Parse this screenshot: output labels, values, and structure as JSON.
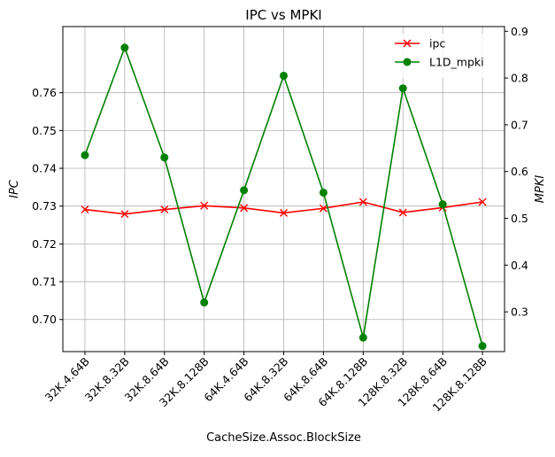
{
  "chart_data": {
    "type": "line",
    "title": "IPC vs MPKI",
    "xlabel": "CacheSize.Assoc.BlockSize",
    "ylabel_left": "IPC",
    "ylabel_right": "MPKI",
    "categories": [
      "32K.4.64B",
      "32K.8.32B",
      "32K.8.64B",
      "32K.8.128B",
      "64K.4.64B",
      "64K.8.32B",
      "64K.8.64B",
      "64K.8.128B",
      "128K.8.32B",
      "128K.8.64B",
      "128K.8.128B"
    ],
    "left_axis": {
      "ylim": [
        0.6915,
        0.7775
      ],
      "ticks": [
        0.7,
        0.71,
        0.72,
        0.73,
        0.74,
        0.75,
        0.76
      ],
      "tick_labels": [
        "0.70",
        "0.71",
        "0.72",
        "0.73",
        "0.74",
        "0.75",
        "0.76"
      ]
    },
    "right_axis": {
      "ylim": [
        0.215,
        0.91
      ],
      "ticks": [
        0.3,
        0.4,
        0.5,
        0.6,
        0.7,
        0.8,
        0.9
      ],
      "tick_labels": [
        "0.3",
        "0.4",
        "0.5",
        "0.6",
        "0.7",
        "0.8",
        "0.9"
      ]
    },
    "series": [
      {
        "name": "ipc",
        "axis": "left",
        "color": "#ff0000",
        "marker": "x",
        "values": [
          0.7291,
          0.7279,
          0.7291,
          0.7301,
          0.7295,
          0.7282,
          0.7294,
          0.7311,
          0.7283,
          0.7296,
          0.7311
        ]
      },
      {
        "name": "L1D_mpki",
        "axis": "right",
        "color": "#008000",
        "marker": "circle",
        "values": [
          0.635,
          0.865,
          0.63,
          0.32,
          0.56,
          0.805,
          0.555,
          0.245,
          0.778,
          0.53,
          0.227
        ]
      }
    ],
    "grid": true,
    "legend_position": "top-right"
  }
}
